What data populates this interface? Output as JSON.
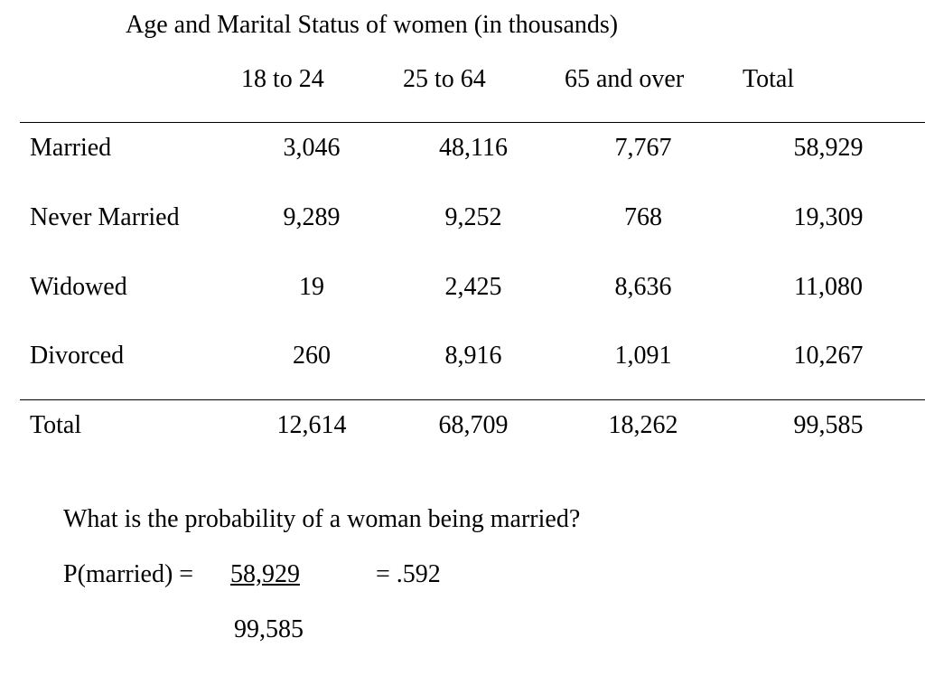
{
  "title": "Age and Marital Status of women (in thousands)",
  "columns": [
    "18 to 24",
    "25 to 64",
    "65 and over",
    "Total"
  ],
  "rows": [
    {
      "label": "Married",
      "values": [
        "3,046",
        "48,116",
        "7,767",
        "58,929"
      ]
    },
    {
      "label": "Never Married",
      "values": [
        "9,289",
        "9,252",
        "768",
        "19,309"
      ]
    },
    {
      "label": "Widowed",
      "values": [
        "19",
        "2,425",
        "8,636",
        "11,080"
      ]
    },
    {
      "label": "Divorced",
      "values": [
        "260",
        "8,916",
        "1,091",
        "10,267"
      ]
    }
  ],
  "total_row": {
    "label": "Total",
    "values": [
      "12,614",
      "68,709",
      "18,262",
      "99,585"
    ]
  },
  "question": "What is the probability of a woman being married?",
  "formula": {
    "lhs": "P(married) =",
    "numerator": "58,929",
    "result": "= .592",
    "denominator": "99,585"
  }
}
